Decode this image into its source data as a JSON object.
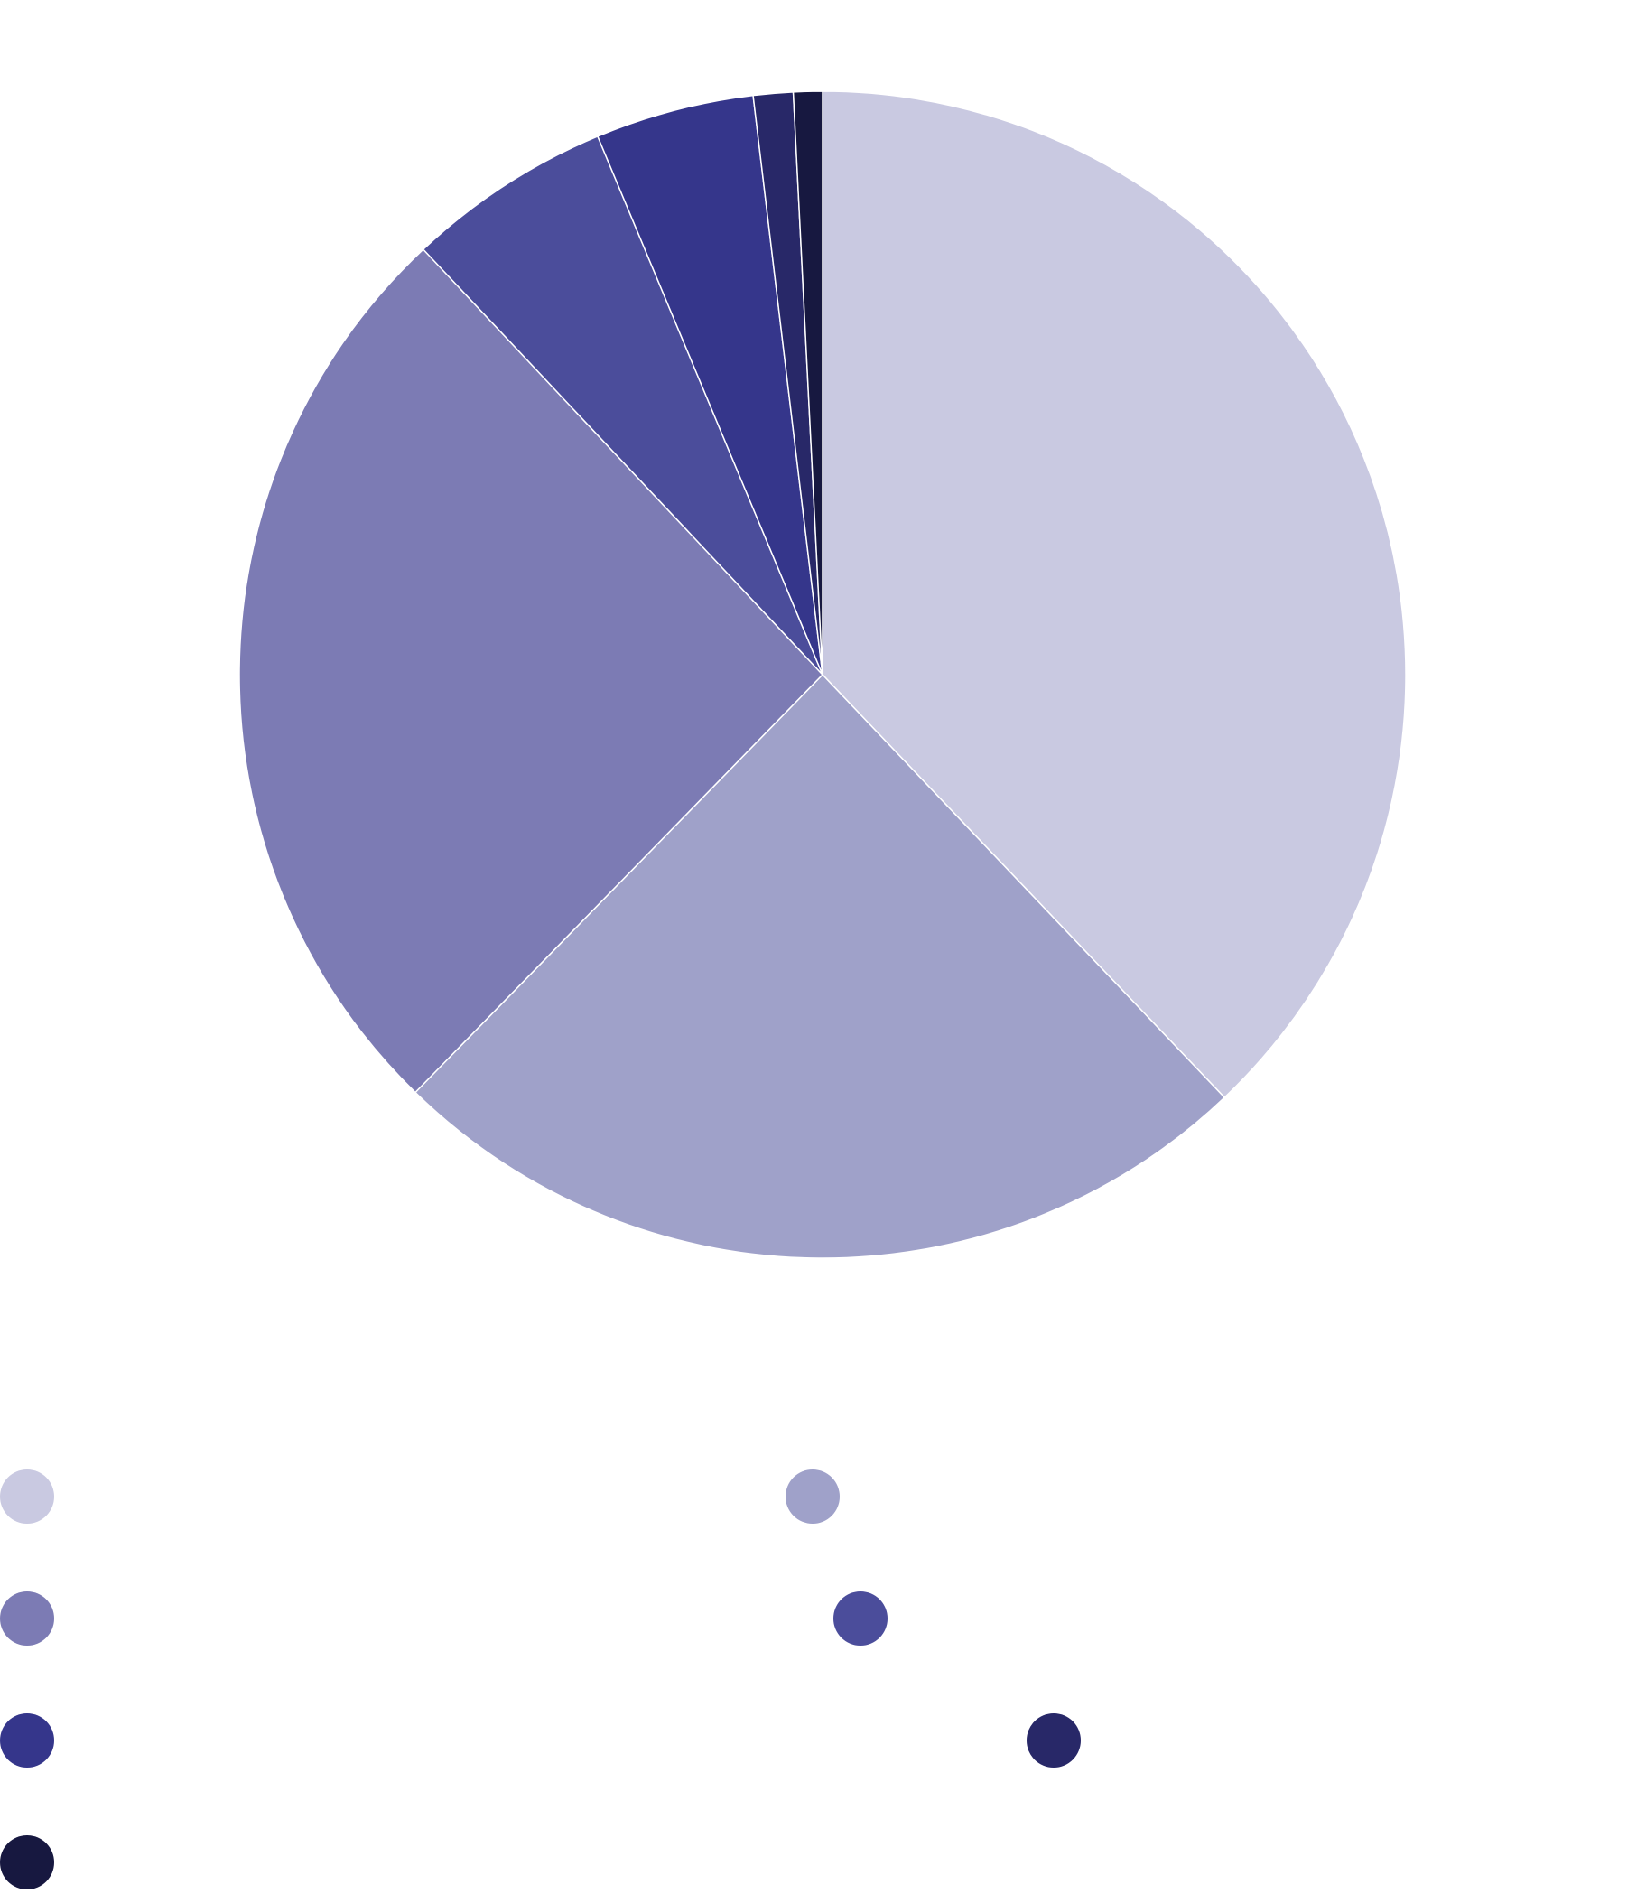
{
  "chart_data": {
    "type": "pie",
    "title": "",
    "start_angle_deg": 0,
    "direction": "clockwise",
    "slices": [
      {
        "value": 37.9,
        "color": "#c9c9e1"
      },
      {
        "value": 24.4,
        "color": "#9fa1c9"
      },
      {
        "value": 25.7,
        "color": "#7c7bb4"
      },
      {
        "value": 5.7,
        "color": "#4b4d9b"
      },
      {
        "value": 4.4,
        "color": "#35368b"
      },
      {
        "value": 1.1,
        "color": "#282868"
      },
      {
        "value": 0.8,
        "color": "#171840"
      }
    ],
    "legend": {
      "placement": "bottom",
      "entries": [
        {
          "color": "#c9c9e1"
        },
        {
          "color": "#9fa1c9"
        },
        {
          "color": "#7c7bb4"
        },
        {
          "color": "#4b4d9b"
        },
        {
          "color": "#35368b"
        },
        {
          "color": "#282868"
        },
        {
          "color": "#171840"
        }
      ]
    }
  }
}
